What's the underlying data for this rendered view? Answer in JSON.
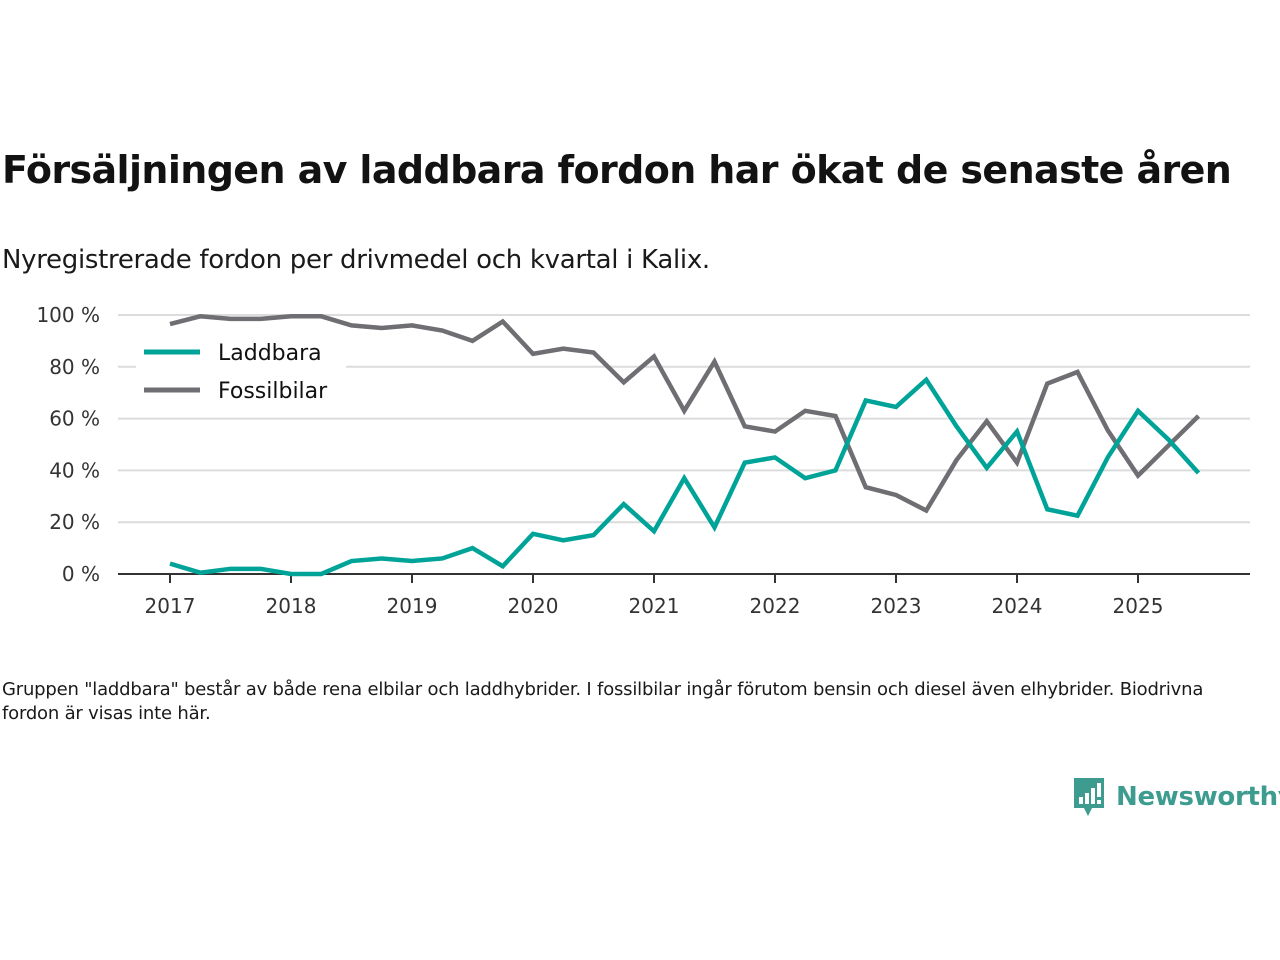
{
  "header": {
    "title": "Försäljningen av laddbara fordon har ökat de senaste åren",
    "subtitle": "Nyregistrerade fordon per drivmedel och kvartal i Kalix."
  },
  "footnote": "Gruppen \"laddbara\" består av både rena elbilar och laddhybrider. I fossilbilar ingår förutom bensin och diesel även elhybrider. Biodrivna fordon är visas inte här.",
  "brand": {
    "name": "Newsworthy",
    "color": "#3d9c8f",
    "icon": "bar-chart-speech-bubble-icon"
  },
  "chart_data": {
    "type": "line",
    "title": "Försäljningen av laddbara fordon har ökat de senaste åren",
    "subtitle": "Nyregistrerade fordon per drivmedel och kvartal i Kalix.",
    "xlabel": "",
    "ylabel": "",
    "ylim": [
      0,
      100
    ],
    "yticks": [
      0,
      20,
      40,
      60,
      80,
      100
    ],
    "ytick_labels": [
      "0 %",
      "20 %",
      "40 %",
      "60 %",
      "80 %",
      "100 %"
    ],
    "xlim": [
      2017,
      2025.75
    ],
    "xticks": [
      2017,
      2018,
      2019,
      2020,
      2021,
      2022,
      2023,
      2024,
      2025
    ],
    "xtick_labels": [
      "2017",
      "2018",
      "2019",
      "2020",
      "2021",
      "2022",
      "2023",
      "2024",
      "2025"
    ],
    "grid": true,
    "legend_position": "top-left",
    "x": [
      2017.0,
      2017.25,
      2017.5,
      2017.75,
      2018.0,
      2018.25,
      2018.5,
      2018.75,
      2019.0,
      2019.25,
      2019.5,
      2019.75,
      2020.0,
      2020.25,
      2020.5,
      2020.75,
      2021.0,
      2021.25,
      2021.5,
      2021.75,
      2022.0,
      2022.25,
      2022.5,
      2022.75,
      2023.0,
      2023.25,
      2023.5,
      2023.75,
      2024.0,
      2024.25,
      2024.5,
      2024.75,
      2025.0,
      2025.25,
      2025.5
    ],
    "series": [
      {
        "name": "Laddbara",
        "color": "#00a398",
        "values": [
          4,
          0.5,
          2,
          2,
          0,
          0,
          5,
          6,
          5,
          6,
          10,
          3,
          15.5,
          13,
          15,
          27,
          16.5,
          37,
          18,
          43,
          45,
          37,
          40,
          67,
          64.5,
          75,
          57,
          41,
          55,
          25,
          22.5,
          45,
          63,
          52,
          39
        ]
      },
      {
        "name": "Fossilbilar",
        "color": "#6e6e73",
        "values": [
          96.5,
          99.5,
          98.5,
          98.5,
          99.5,
          99.5,
          96,
          95,
          96,
          94,
          90,
          97.5,
          85,
          87,
          85.5,
          74,
          84,
          63,
          82,
          57,
          55,
          63,
          61,
          33.5,
          30.5,
          24.5,
          44,
          59,
          43,
          73.5,
          78,
          55.5,
          38,
          49.5,
          61
        ]
      }
    ]
  }
}
